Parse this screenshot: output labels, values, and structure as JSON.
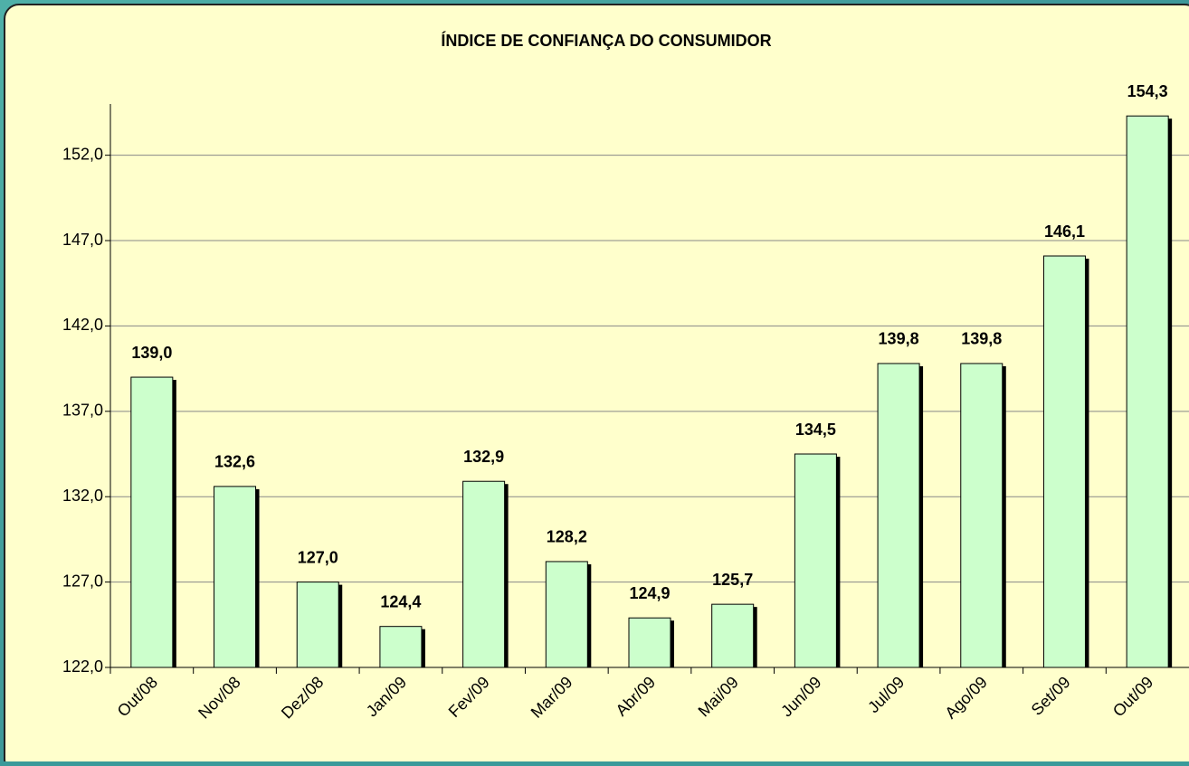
{
  "chart_data": {
    "type": "bar",
    "title": "ÍNDICE DE CONFIANÇA DO CONSUMIDOR",
    "categories": [
      "Out/08",
      "Nov/08",
      "Dez/08",
      "Jan/09",
      "Fev/09",
      "Mar/09",
      "Abr/09",
      "Mai/09",
      "Jun/09",
      "Jul/09",
      "Ago/09",
      "Set/09",
      "Out/09"
    ],
    "values": [
      139.0,
      132.6,
      127.0,
      124.4,
      132.9,
      128.2,
      124.9,
      125.7,
      134.5,
      139.8,
      139.8,
      146.1,
      154.3
    ],
    "value_labels": [
      "139,0",
      "132,6",
      "127,0",
      "124,4",
      "132,9",
      "128,2",
      "124,9",
      "125,7",
      "134,5",
      "139,8",
      "139,8",
      "146,1",
      "154,3"
    ],
    "color": "#ccffcc",
    "ylim": [
      122,
      155
    ],
    "yticks": [
      {
        "value": 122,
        "label": "122,0"
      },
      {
        "value": 127,
        "label": "127,0"
      },
      {
        "value": 132,
        "label": "132,0"
      },
      {
        "value": 137,
        "label": "137,0"
      },
      {
        "value": 142,
        "label": "142,0"
      },
      {
        "value": 147,
        "label": "147,0"
      },
      {
        "value": 152,
        "label": "152,0"
      }
    ],
    "grid": true
  }
}
